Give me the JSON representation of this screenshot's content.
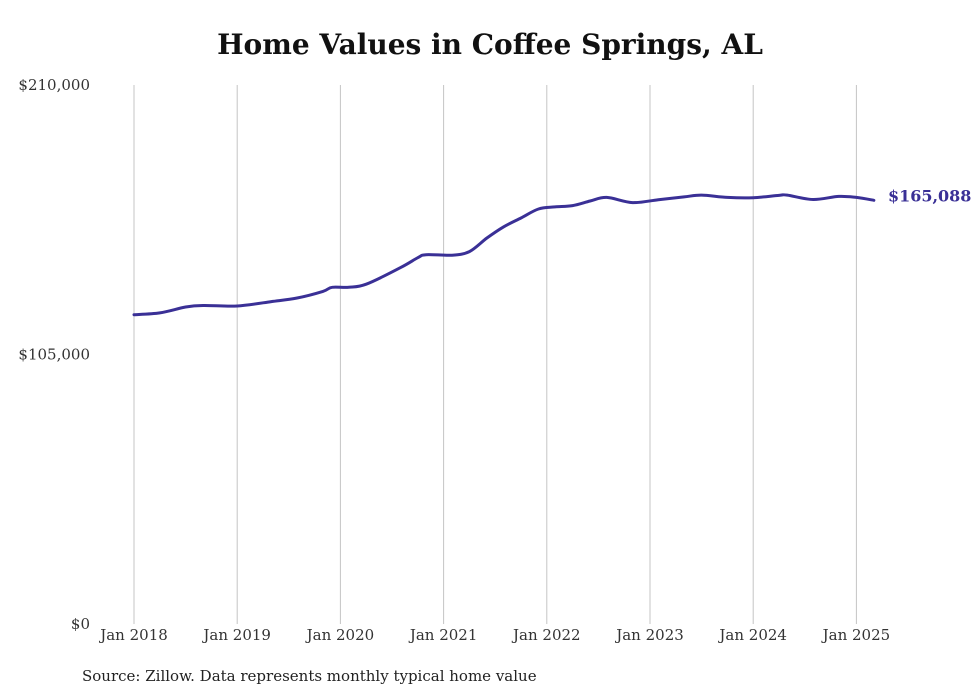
{
  "chart_data": {
    "type": "line",
    "title": "Home Values in Coffee Springs, AL",
    "xlabel": "",
    "ylabel": "",
    "ylim": [
      0,
      210000
    ],
    "y_ticks": [
      "$210,000",
      "$105,000",
      "$0"
    ],
    "y_tick_values": [
      210000,
      105000,
      0
    ],
    "x_ticks": [
      "Jan 2018",
      "Jan 2019",
      "Jan 2020",
      "Jan 2021",
      "Jan 2022",
      "Jan 2023",
      "Jan 2024",
      "Jan 2025"
    ],
    "grid": "vertical",
    "line_color": "#3a3096",
    "end_label": "$165,088",
    "series": [
      {
        "values": [
          [
            2018.0,
            120500
          ],
          [
            2018.25,
            121200
          ],
          [
            2018.5,
            123500
          ],
          [
            2018.67,
            124100
          ],
          [
            2019.0,
            123900
          ],
          [
            2019.33,
            125600
          ],
          [
            2019.58,
            127000
          ],
          [
            2019.83,
            129600
          ],
          [
            2019.92,
            131200
          ],
          [
            2020.08,
            131200
          ],
          [
            2020.25,
            132400
          ],
          [
            2020.58,
            138800
          ],
          [
            2020.75,
            142700
          ],
          [
            2020.83,
            143900
          ],
          [
            2021.08,
            143700
          ],
          [
            2021.25,
            145100
          ],
          [
            2021.42,
            150400
          ],
          [
            2021.58,
            154700
          ],
          [
            2021.75,
            158200
          ],
          [
            2021.92,
            161700
          ],
          [
            2022.08,
            162500
          ],
          [
            2022.25,
            163000
          ],
          [
            2022.42,
            164800
          ],
          [
            2022.58,
            166200
          ],
          [
            2022.83,
            164200
          ],
          [
            2023.08,
            165300
          ],
          [
            2023.33,
            166400
          ],
          [
            2023.5,
            167100
          ],
          [
            2023.75,
            166200
          ],
          [
            2024.0,
            166100
          ],
          [
            2024.25,
            167000
          ],
          [
            2024.33,
            167100
          ],
          [
            2024.58,
            165400
          ],
          [
            2024.83,
            166600
          ],
          [
            2025.0,
            166200
          ],
          [
            2025.17,
            165088
          ]
        ]
      }
    ]
  },
  "source_note": "Source: Zillow. Data represents monthly typical home value"
}
